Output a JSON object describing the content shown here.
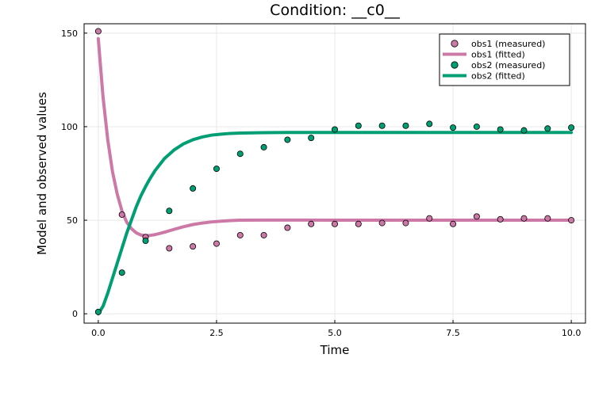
{
  "chart_data": {
    "type": "scatter",
    "title": "Condition: __c0__",
    "xlabel": "Time",
    "ylabel": "Model and observed values",
    "xlim": [
      -0.3,
      10.3
    ],
    "ylim": [
      -5,
      155
    ],
    "xticks": [
      0,
      2.5,
      5,
      7.5,
      10
    ],
    "xtick_labels": [
      "0.0",
      "2.5",
      "5.0",
      "7.5",
      "10.0"
    ],
    "yticks": [
      0,
      50,
      100,
      150
    ],
    "ytick_labels": [
      "0",
      "50",
      "100",
      "150"
    ],
    "grid": true,
    "legend_position": "top-right",
    "series": [
      {
        "name": "obs1 (measured)",
        "kind": "scatter",
        "color": "#cc79a7",
        "x": [
          0,
          0.5,
          1,
          1.5,
          2,
          2.5,
          3,
          3.5,
          4,
          4.5,
          5,
          5.5,
          6,
          6.5,
          7,
          7.5,
          8,
          8.5,
          9,
          9.5,
          10
        ],
        "y": [
          151,
          53,
          41,
          35,
          36,
          37.5,
          42,
          42,
          46,
          48,
          48,
          48,
          48.5,
          48.5,
          51,
          48,
          52,
          50.5,
          51,
          51,
          50
        ]
      },
      {
        "name": "obs1 (fitted)",
        "kind": "line",
        "color": "#cc79a7",
        "x": [
          0,
          0.1,
          0.2,
          0.3,
          0.4,
          0.5,
          0.6,
          0.7,
          0.8,
          0.9,
          1.0,
          1.1,
          1.2,
          1.4,
          1.6,
          1.8,
          2.0,
          2.2,
          2.4,
          2.6,
          2.8,
          3.0,
          3.5,
          4,
          5,
          6,
          7,
          8,
          9,
          10
        ],
        "y": [
          147,
          116,
          93,
          76,
          64,
          55,
          49,
          45.5,
          43.3,
          42.1,
          41.8,
          41.9,
          42.3,
          43.6,
          45.1,
          46.5,
          47.7,
          48.5,
          49.1,
          49.5,
          49.8,
          50,
          50.1,
          50.1,
          50,
          50,
          50,
          50,
          50,
          50
        ]
      },
      {
        "name": "obs2 (measured)",
        "kind": "scatter",
        "color": "#009e73",
        "x": [
          0,
          0.5,
          1,
          1.5,
          2,
          2.5,
          3,
          3.5,
          4,
          4.5,
          5,
          5.5,
          6,
          6.5,
          7,
          7.5,
          8,
          8.5,
          9,
          9.5,
          10
        ],
        "y": [
          1,
          22,
          39,
          55,
          67,
          77.5,
          85.5,
          89,
          93,
          94,
          98.5,
          100.5,
          100.5,
          100.5,
          101.5,
          99.5,
          100,
          98.5,
          98,
          99,
          99.5
        ]
      },
      {
        "name": "obs2 (fitted)",
        "kind": "line",
        "color": "#009e73",
        "x": [
          0,
          0.1,
          0.2,
          0.3,
          0.4,
          0.5,
          0.6,
          0.7,
          0.8,
          0.9,
          1.0,
          1.1,
          1.2,
          1.4,
          1.6,
          1.8,
          2.0,
          2.2,
          2.4,
          2.6,
          2.8,
          3.0,
          3.5,
          4,
          5,
          6,
          7,
          8,
          9,
          10
        ],
        "y": [
          0,
          4,
          11,
          19,
          27,
          35,
          43,
          50,
          57,
          63,
          68,
          72.5,
          76.5,
          83,
          87.5,
          90.8,
          93,
          94.5,
          95.5,
          96,
          96.4,
          96.6,
          96.8,
          96.9,
          96.9,
          96.9,
          96.9,
          96.9,
          96.9,
          96.9
        ]
      }
    ]
  }
}
